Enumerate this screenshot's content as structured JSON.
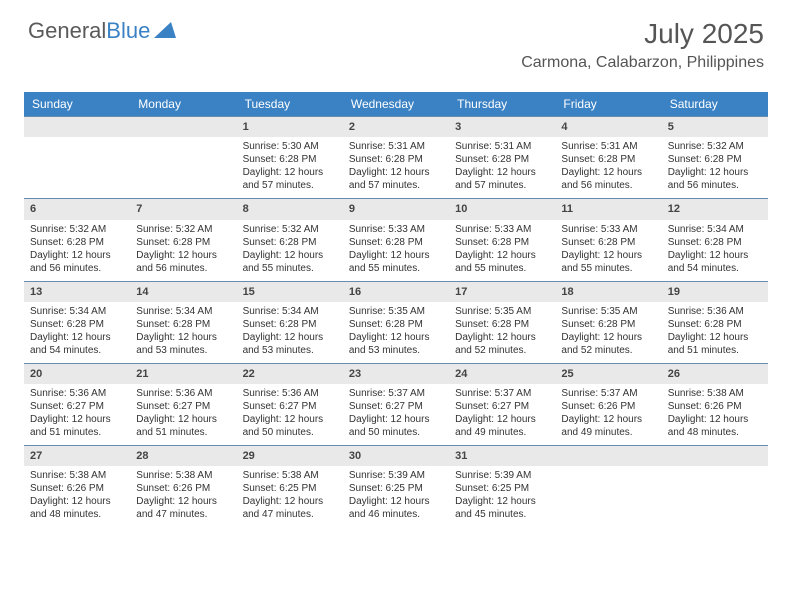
{
  "logo": {
    "text1": "General",
    "text2": "Blue"
  },
  "title": "July 2025",
  "location": "Carmona, Calabarzon, Philippines",
  "colors": {
    "header_bar": "#3b82c4",
    "daynum_bg": "#e9e9e9",
    "daynum_border": "#6a8bb0",
    "text": "#333333",
    "logo_gray": "#5a5a5a",
    "logo_blue": "#3b82c4"
  },
  "daynames": [
    "Sunday",
    "Monday",
    "Tuesday",
    "Wednesday",
    "Thursday",
    "Friday",
    "Saturday"
  ],
  "weeks": [
    [
      null,
      null,
      {
        "n": "1",
        "sr": "5:30 AM",
        "ss": "6:28 PM",
        "dl": "12 hours and 57 minutes."
      },
      {
        "n": "2",
        "sr": "5:31 AM",
        "ss": "6:28 PM",
        "dl": "12 hours and 57 minutes."
      },
      {
        "n": "3",
        "sr": "5:31 AM",
        "ss": "6:28 PM",
        "dl": "12 hours and 57 minutes."
      },
      {
        "n": "4",
        "sr": "5:31 AM",
        "ss": "6:28 PM",
        "dl": "12 hours and 56 minutes."
      },
      {
        "n": "5",
        "sr": "5:32 AM",
        "ss": "6:28 PM",
        "dl": "12 hours and 56 minutes."
      }
    ],
    [
      {
        "n": "6",
        "sr": "5:32 AM",
        "ss": "6:28 PM",
        "dl": "12 hours and 56 minutes."
      },
      {
        "n": "7",
        "sr": "5:32 AM",
        "ss": "6:28 PM",
        "dl": "12 hours and 56 minutes."
      },
      {
        "n": "8",
        "sr": "5:32 AM",
        "ss": "6:28 PM",
        "dl": "12 hours and 55 minutes."
      },
      {
        "n": "9",
        "sr": "5:33 AM",
        "ss": "6:28 PM",
        "dl": "12 hours and 55 minutes."
      },
      {
        "n": "10",
        "sr": "5:33 AM",
        "ss": "6:28 PM",
        "dl": "12 hours and 55 minutes."
      },
      {
        "n": "11",
        "sr": "5:33 AM",
        "ss": "6:28 PM",
        "dl": "12 hours and 55 minutes."
      },
      {
        "n": "12",
        "sr": "5:34 AM",
        "ss": "6:28 PM",
        "dl": "12 hours and 54 minutes."
      }
    ],
    [
      {
        "n": "13",
        "sr": "5:34 AM",
        "ss": "6:28 PM",
        "dl": "12 hours and 54 minutes."
      },
      {
        "n": "14",
        "sr": "5:34 AM",
        "ss": "6:28 PM",
        "dl": "12 hours and 53 minutes."
      },
      {
        "n": "15",
        "sr": "5:34 AM",
        "ss": "6:28 PM",
        "dl": "12 hours and 53 minutes."
      },
      {
        "n": "16",
        "sr": "5:35 AM",
        "ss": "6:28 PM",
        "dl": "12 hours and 53 minutes."
      },
      {
        "n": "17",
        "sr": "5:35 AM",
        "ss": "6:28 PM",
        "dl": "12 hours and 52 minutes."
      },
      {
        "n": "18",
        "sr": "5:35 AM",
        "ss": "6:28 PM",
        "dl": "12 hours and 52 minutes."
      },
      {
        "n": "19",
        "sr": "5:36 AM",
        "ss": "6:28 PM",
        "dl": "12 hours and 51 minutes."
      }
    ],
    [
      {
        "n": "20",
        "sr": "5:36 AM",
        "ss": "6:27 PM",
        "dl": "12 hours and 51 minutes."
      },
      {
        "n": "21",
        "sr": "5:36 AM",
        "ss": "6:27 PM",
        "dl": "12 hours and 51 minutes."
      },
      {
        "n": "22",
        "sr": "5:36 AM",
        "ss": "6:27 PM",
        "dl": "12 hours and 50 minutes."
      },
      {
        "n": "23",
        "sr": "5:37 AM",
        "ss": "6:27 PM",
        "dl": "12 hours and 50 minutes."
      },
      {
        "n": "24",
        "sr": "5:37 AM",
        "ss": "6:27 PM",
        "dl": "12 hours and 49 minutes."
      },
      {
        "n": "25",
        "sr": "5:37 AM",
        "ss": "6:26 PM",
        "dl": "12 hours and 49 minutes."
      },
      {
        "n": "26",
        "sr": "5:38 AM",
        "ss": "6:26 PM",
        "dl": "12 hours and 48 minutes."
      }
    ],
    [
      {
        "n": "27",
        "sr": "5:38 AM",
        "ss": "6:26 PM",
        "dl": "12 hours and 48 minutes."
      },
      {
        "n": "28",
        "sr": "5:38 AM",
        "ss": "6:26 PM",
        "dl": "12 hours and 47 minutes."
      },
      {
        "n": "29",
        "sr": "5:38 AM",
        "ss": "6:25 PM",
        "dl": "12 hours and 47 minutes."
      },
      {
        "n": "30",
        "sr": "5:39 AM",
        "ss": "6:25 PM",
        "dl": "12 hours and 46 minutes."
      },
      {
        "n": "31",
        "sr": "5:39 AM",
        "ss": "6:25 PM",
        "dl": "12 hours and 45 minutes."
      },
      null,
      null
    ]
  ],
  "labels": {
    "sunrise": "Sunrise:",
    "sunset": "Sunset:",
    "daylight": "Daylight:"
  }
}
